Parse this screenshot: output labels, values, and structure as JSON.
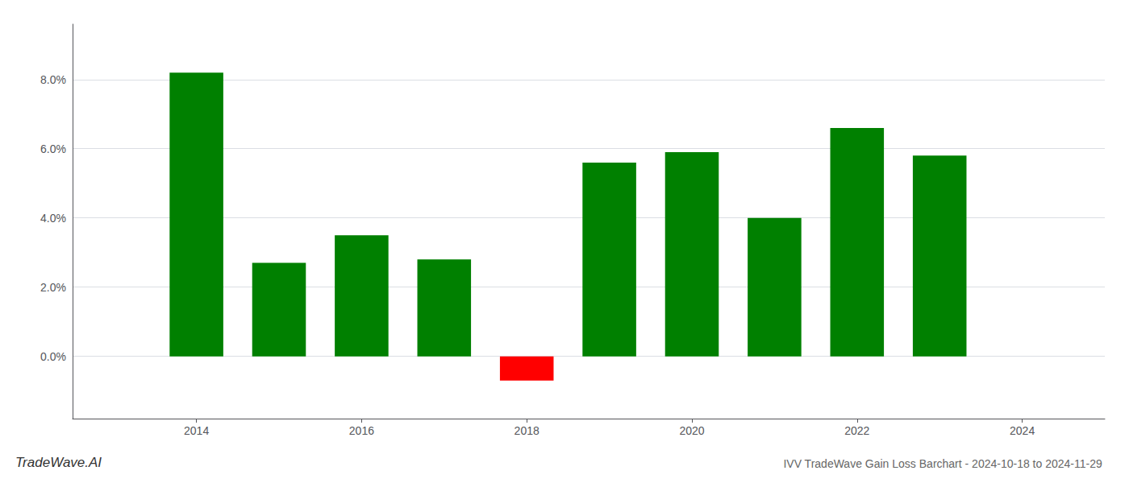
{
  "chart_data": {
    "type": "bar",
    "title": "IVV TradeWave Gain Loss Barchart - 2024-10-18 to 2024-11-29",
    "annotations": [
      "TradeWave.AI"
    ],
    "x": [
      2014,
      2015,
      2016,
      2017,
      2018,
      2019,
      2020,
      2021,
      2022,
      2023
    ],
    "values": [
      0.082,
      0.027,
      0.035,
      0.028,
      -0.007,
      0.056,
      0.059,
      0.04,
      0.066,
      0.058
    ],
    "colors": [
      "#008000",
      "#008000",
      "#008000",
      "#008000",
      "#ff0000",
      "#008000",
      "#008000",
      "#008000",
      "#008000",
      "#008000"
    ],
    "xlim": [
      2012.5,
      2025.0
    ],
    "xticks": [
      2014,
      2016,
      2018,
      2020,
      2022,
      2024
    ],
    "ylim": [
      -0.018,
      0.096
    ],
    "yticks": [
      {
        "value": 0.0,
        "label": "0.0%"
      },
      {
        "value": 0.02,
        "label": "2.0%"
      },
      {
        "value": 0.04,
        "label": "4.0%"
      },
      {
        "value": 0.06,
        "label": "6.0%"
      },
      {
        "value": 0.08,
        "label": "8.0%"
      }
    ],
    "grid": true
  }
}
